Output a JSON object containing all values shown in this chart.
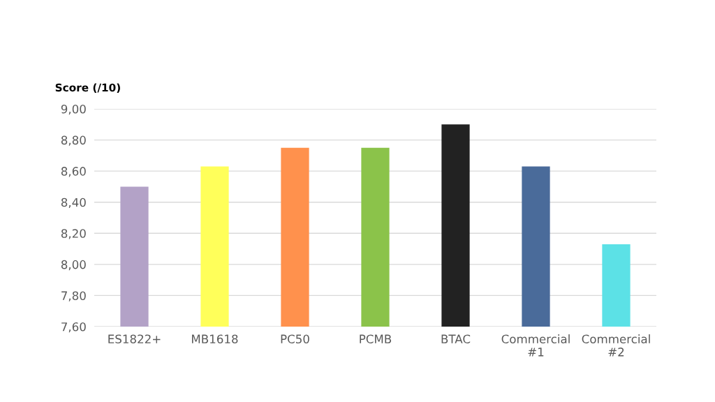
{
  "chart_data": {
    "type": "bar",
    "ylabel": "Score (/10)",
    "categories": [
      "ES1822+",
      "MB1618",
      "PC50",
      "PCMB",
      "BTAC",
      "Commercial\n#1",
      "Commercial\n#2"
    ],
    "values": [
      8.5,
      8.63,
      8.75,
      8.75,
      8.9,
      8.63,
      8.13
    ],
    "colors": [
      "#b3a2c7",
      "#ffff5a",
      "#ff914d",
      "#8bc34a",
      "#222222",
      "#4a6b9a",
      "#5ce1e6"
    ],
    "ylim": [
      7.6,
      9.0
    ],
    "yticks": [
      {
        "value": 7.6,
        "label": "7,60"
      },
      {
        "value": 7.8,
        "label": "7,80"
      },
      {
        "value": 8.0,
        "label": "8,00"
      },
      {
        "value": 8.2,
        "label": "8,20"
      },
      {
        "value": 8.4,
        "label": "8,40"
      },
      {
        "value": 8.6,
        "label": "8,60"
      },
      {
        "value": 8.8,
        "label": "8,80"
      },
      {
        "value": 9.0,
        "label": "9,00"
      }
    ],
    "grid": "y",
    "legend": false
  }
}
